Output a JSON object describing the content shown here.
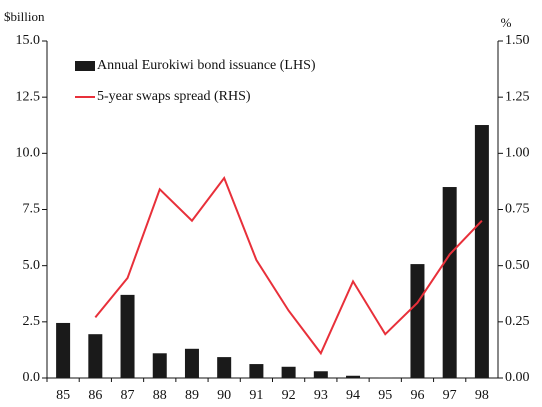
{
  "chart_data": {
    "type": "bar-line",
    "y_label": "$billion",
    "y2_label": "%",
    "categories": [
      "85",
      "86",
      "87",
      "88",
      "89",
      "90",
      "91",
      "92",
      "93",
      "94",
      "95",
      "96",
      "97",
      "98"
    ],
    "series": [
      {
        "name": "Annual Eurokiwi bond issuance (LHS)",
        "type": "bar",
        "color": "#1a1a1a",
        "values": [
          2.45,
          1.95,
          3.7,
          1.1,
          1.3,
          0.93,
          0.62,
          0.5,
          0.3,
          0.1,
          0.02,
          5.07,
          8.5,
          11.26
        ]
      },
      {
        "name": "5-year swaps spread (RHS)",
        "type": "line",
        "axis": "y2",
        "color": "#e8303a",
        "values": [
          null,
          0.27,
          0.445,
          0.84,
          0.7,
          0.89,
          0.525,
          0.3,
          0.11,
          0.43,
          0.195,
          0.335,
          0.55,
          0.7
        ]
      }
    ],
    "ylim": [
      0,
      15
    ],
    "yticks": [
      {
        "value": 0,
        "label": "0.0"
      },
      2.5,
      {
        "value": 5,
        "label": "5.0"
      },
      7.5,
      {
        "value": 10,
        "label": "10.0"
      },
      12.5,
      {
        "value": 15,
        "label": "15.0"
      }
    ],
    "y2lim": [
      0,
      1.5
    ],
    "y2ticks": [
      {
        "value": 0,
        "label": "0.00"
      },
      0.25,
      {
        "value": 0.5,
        "label": "0.50"
      },
      0.75,
      {
        "value": 1,
        "label": "1.00"
      },
      1.25,
      {
        "value": 1.5,
        "label": "1.50"
      }
    ],
    "legend": "upper left"
  }
}
